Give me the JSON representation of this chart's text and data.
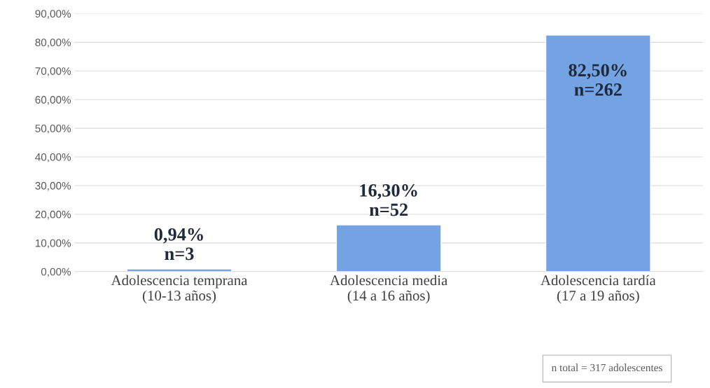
{
  "chart_data": {
    "type": "bar",
    "categories": [
      "Adolescencia temprana\n(10-13 años)",
      "Adolescencia media\n(14 a 16 años)",
      "Adolescencia tardía\n(17 a 19 años)"
    ],
    "values": [
      0.94,
      16.3,
      82.5
    ],
    "value_labels": [
      "0,94%\nn=3",
      "16,30%\nn=52",
      "82,50%\nn=262"
    ],
    "color": "#74a3e3",
    "ylim": [
      0,
      90
    ],
    "yticks": [
      {
        "value": 0,
        "label": "0,00%"
      },
      {
        "value": 10,
        "label": "10,00%"
      },
      {
        "value": 20,
        "label": "20,00%"
      },
      {
        "value": 30,
        "label": "30,00%"
      },
      {
        "value": 40,
        "label": "40,00%"
      },
      {
        "value": 50,
        "label": "50,00%"
      },
      {
        "value": 60,
        "label": "60,00%"
      },
      {
        "value": 70,
        "label": "70,00%"
      },
      {
        "value": 80,
        "label": "80,00%"
      },
      {
        "value": 90,
        "label": "90,00%"
      }
    ],
    "grid": "y",
    "annotations": [
      "n total = 317 adolescentes"
    ]
  }
}
